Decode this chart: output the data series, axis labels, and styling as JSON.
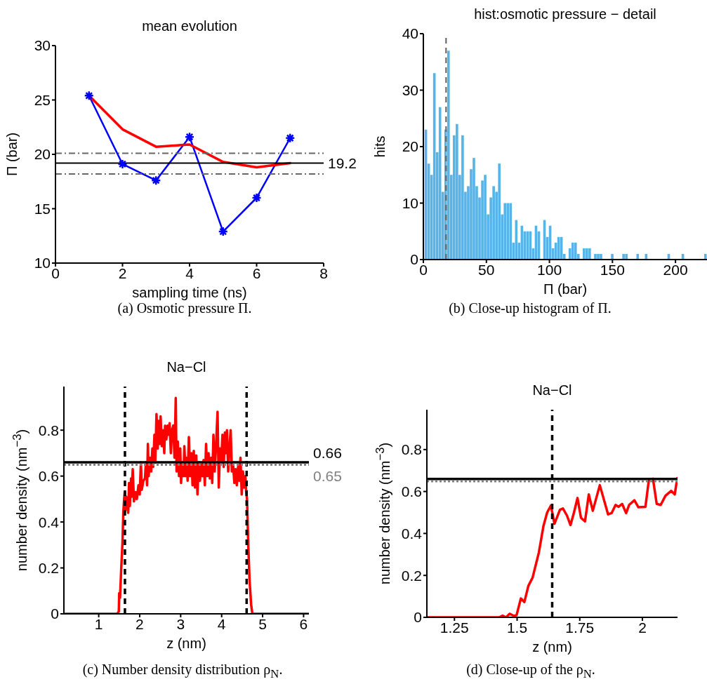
{
  "chart_data": [
    {
      "type": "line",
      "title": "mean evolution",
      "xlabel": "sampling time (ns)",
      "ylabel": "Π (bar)",
      "x": [
        1,
        2,
        3,
        4,
        5,
        6,
        7
      ],
      "series": [
        {
          "color": "#0000ff",
          "marker": "cross",
          "values": [
            25.4,
            19.1,
            17.6,
            21.6,
            12.9,
            16.0,
            21.5
          ]
        },
        {
          "color": "#ff0000",
          "marker": "none",
          "values": [
            25.4,
            22.3,
            20.7,
            20.9,
            19.3,
            18.8,
            19.2
          ]
        }
      ],
      "xlim": [
        0,
        8
      ],
      "xticks": [
        0,
        2,
        4,
        6,
        8
      ],
      "ylim": [
        10,
        30
      ],
      "yticks": [
        10,
        15,
        20,
        25,
        30
      ],
      "ref_lines": [
        {
          "axis": "y",
          "value": 19.2,
          "label": "19.2",
          "color": "#000000",
          "line_style": "solid"
        },
        {
          "axis": "y",
          "value": 20.1,
          "color": "#666666",
          "line_style": "dashdot"
        },
        {
          "axis": "y",
          "value": 18.2,
          "color": "#666666",
          "line_style": "dashdot"
        }
      ],
      "annotations": [
        "(a) Osmotic pressure Π."
      ]
    },
    {
      "type": "histogram",
      "title": "hist:osmotic pressure − detail",
      "xlabel": "Π (bar)",
      "ylabel": "hits",
      "color": "#56b4e9",
      "bins": [
        1,
        3.24,
        5.48,
        7.72,
        9.96,
        12.2,
        14.44,
        16.68,
        18.92,
        21.16,
        23.4,
        25.64,
        27.88,
        30.12,
        32.36,
        34.6,
        36.84,
        39.08,
        41.32,
        43.56,
        45.8,
        48.04,
        50.28,
        52.52,
        54.76,
        57,
        59.24,
        61.48,
        63.72,
        65.96,
        68.2,
        70.44,
        72.68,
        74.92,
        77.16,
        79.4,
        81.64,
        83.88,
        86.12,
        88.36,
        90.6,
        92.84,
        95.08,
        97.32,
        99.56,
        101.8,
        104.04,
        106.28,
        108.52,
        110.76,
        113,
        115.24,
        117.48,
        119.72,
        121.96,
        124.2,
        126.44,
        128.68,
        130.92,
        133.16,
        135.4,
        137.64,
        139.88,
        142.12,
        144.36,
        146.6,
        148.84,
        151.08,
        153.32,
        155.56,
        157.8,
        160.04,
        162.28,
        164.52,
        166.76,
        169,
        171.24,
        173.48,
        175.72,
        177.96,
        180.2,
        182.44,
        184.68,
        186.92,
        189.16,
        191.4,
        193.64,
        195.88,
        198.12,
        200.36,
        202.6,
        204.84,
        207.08,
        209.32,
        211.56,
        213.8,
        216.04,
        218.28,
        220.52,
        222.76,
        225
      ],
      "values": [
        23,
        17,
        15,
        33,
        19,
        27,
        12,
        23,
        37,
        15,
        22,
        24,
        15,
        22,
        12,
        13,
        16,
        18,
        13,
        11,
        14,
        15,
        8,
        11,
        13,
        12,
        17,
        8,
        10,
        10,
        10,
        3,
        7,
        3,
        6,
        5,
        5,
        5,
        2,
        6,
        5,
        0,
        7,
        4,
        6,
        2,
        3,
        4,
        4,
        1,
        0,
        2,
        3,
        3,
        1,
        0,
        2,
        2,
        2,
        0,
        1,
        1,
        1,
        0,
        0,
        0,
        1,
        0,
        0,
        0,
        1,
        1,
        0,
        0,
        0,
        1,
        0,
        0,
        1,
        0,
        0,
        0,
        0,
        0,
        0,
        0,
        1,
        0,
        0,
        0,
        0,
        1,
        0,
        0,
        0,
        0,
        0,
        0,
        0,
        1
      ],
      "xlim": [
        0,
        225
      ],
      "xticks": [
        0,
        50,
        100,
        150,
        200
      ],
      "ylim": [
        0,
        40
      ],
      "yticks": [
        0,
        10,
        20,
        30,
        40
      ],
      "ref_lines": [
        {
          "axis": "x",
          "value": 18,
          "color": "#5f5f5f",
          "line_style": "dashed"
        }
      ],
      "annotations": [
        "(b) Close-up histogram of Π."
      ]
    },
    {
      "type": "line",
      "title": "Na−Cl",
      "xlabel": "z (nm)",
      "ylabel": "number density (nm$^{−3}$)",
      "series": [
        {
          "color": "#ff0000",
          "x": [
            0.15,
            1.45,
            1.49,
            1.5,
            1.52,
            1.55,
            1.58,
            1.6,
            1.62,
            1.635,
            1.65,
            1.67,
            1.7,
            1.72,
            1.74,
            1.76,
            1.79,
            1.8,
            1.83,
            1.86,
            1.9,
            1.93,
            1.97,
            2.0,
            2.03,
            2.05,
            2.09,
            2.13,
            2.15,
            2.18,
            2.2,
            2.22,
            2.25,
            2.28,
            2.31,
            2.33,
            2.36,
            2.38,
            2.41,
            2.44,
            2.46,
            2.49,
            2.51,
            2.54,
            2.57,
            2.6,
            2.62,
            2.65,
            2.68,
            2.7,
            2.73,
            2.76,
            2.79,
            2.82,
            2.85,
            2.88,
            2.9,
            2.93,
            2.96,
            2.99,
            3.01,
            3.04,
            3.07,
            3.09,
            3.12,
            3.15,
            3.17,
            3.2,
            3.23,
            3.26,
            3.29,
            3.32,
            3.35,
            3.38,
            3.41,
            3.44,
            3.47,
            3.5,
            3.53,
            3.56,
            3.59,
            3.62,
            3.65,
            3.68,
            3.71,
            3.74,
            3.77,
            3.8,
            3.83,
            3.86,
            3.9,
            3.93,
            3.96,
            3.99,
            4.02,
            4.05,
            4.08,
            4.1,
            4.13,
            4.16,
            4.19,
            4.22,
            4.25,
            4.28,
            4.31,
            4.34,
            4.37,
            4.4,
            4.43,
            4.46,
            4.49,
            4.52,
            4.55,
            4.58,
            4.6,
            4.62,
            4.65,
            4.68,
            4.72,
            4.75,
            6.13
          ],
          "values": [
            0,
            0,
            0.01,
            0.09,
            0.07,
            0.2,
            0.31,
            0.44,
            0.5,
            0.53,
            0.45,
            0.51,
            0.48,
            0.44,
            0.57,
            0.47,
            0.59,
            0.51,
            0.63,
            0.49,
            0.53,
            0.5,
            0.56,
            0.52,
            0.66,
            0.54,
            0.58,
            0.59,
            0.66,
            0.56,
            0.74,
            0.6,
            0.68,
            0.62,
            0.72,
            0.64,
            0.78,
            0.66,
            0.87,
            0.72,
            0.84,
            0.74,
            0.86,
            0.73,
            0.8,
            0.7,
            0.82,
            0.76,
            0.82,
            0.78,
            0.83,
            0.7,
            0.8,
            0.82,
            0.68,
            0.94,
            0.62,
            0.75,
            0.6,
            0.72,
            0.57,
            0.66,
            0.6,
            0.73,
            0.6,
            0.68,
            0.58,
            0.77,
            0.6,
            0.7,
            0.56,
            0.71,
            0.55,
            0.69,
            0.52,
            0.66,
            0.58,
            0.65,
            0.6,
            0.67,
            0.56,
            0.74,
            0.6,
            0.7,
            0.59,
            0.68,
            0.57,
            0.78,
            0.62,
            0.72,
            0.88,
            0.55,
            0.72,
            0.66,
            0.78,
            0.64,
            0.79,
            0.7,
            0.8,
            0.62,
            0.72,
            0.8,
            0.62,
            0.65,
            0.57,
            0.63,
            0.56,
            0.64,
            0.58,
            0.68,
            0.52,
            0.62,
            0.55,
            0.6,
            0.53,
            0.5,
            0.3,
            0.15,
            0.04,
            0,
            0
          ]
        }
      ],
      "xlim": [
        0.15,
        6.13
      ],
      "xticks": [
        1,
        2,
        3,
        4,
        5,
        6
      ],
      "ylim": [
        0,
        0.99
      ],
      "yticks": [
        0,
        0.2,
        0.4,
        0.6,
        0.8
      ],
      "ref_lines": [
        {
          "axis": "x",
          "value": 1.64,
          "color": "#000000",
          "line_style": "dashed"
        },
        {
          "axis": "x",
          "value": 4.61,
          "color": "#000000",
          "line_style": "dashed"
        },
        {
          "axis": "y",
          "value": 0.66,
          "label": "0.66",
          "color": "#000000",
          "line_style": "solid"
        },
        {
          "axis": "y",
          "value": 0.65,
          "label": "0.65",
          "color": "#808080",
          "line_style": "dotted"
        }
      ],
      "annotations": [
        "(c) Number density distribution ρ$_{N}$."
      ]
    },
    {
      "type": "line",
      "title": "Na−Cl",
      "xlabel": "z (nm)",
      "ylabel": "number density (nm$^{−3}$)",
      "series": [
        {
          "color": "#ff0000",
          "x": [
            1.14,
            1.428,
            1.442,
            1.456,
            1.47,
            1.489,
            1.498,
            1.515,
            1.529,
            1.545,
            1.562,
            1.587,
            1.605,
            1.62,
            1.635,
            1.649,
            1.671,
            1.683,
            1.699,
            1.713,
            1.727,
            1.741,
            1.755,
            1.771,
            1.786,
            1.802,
            1.83,
            1.863,
            1.877,
            1.893,
            1.905,
            1.919,
            1.935,
            1.947,
            1.968,
            1.984,
            2.012,
            2.026,
            2.042,
            2.057,
            2.073,
            2.092,
            2.115,
            2.129,
            2.139
          ],
          "values": [
            0,
            0,
            0.008,
            0,
            0.017,
            0.006,
            0.011,
            0.09,
            0.073,
            0.15,
            0.19,
            0.31,
            0.435,
            0.5,
            0.533,
            0.446,
            0.513,
            0.519,
            0.485,
            0.44,
            0.5,
            0.569,
            0.474,
            0.458,
            0.586,
            0.508,
            0.63,
            0.491,
            0.497,
            0.536,
            0.527,
            0.541,
            0.497,
            0.536,
            0.558,
            0.525,
            0.527,
            0.658,
            0.661,
            0.541,
            0.536,
            0.58,
            0.603,
            0.586,
            0.664
          ]
        }
      ],
      "xlim": [
        1.14,
        2.14
      ],
      "xticks": [
        1.25,
        1.5,
        1.75,
        2
      ],
      "ylim": [
        0,
        0.99
      ],
      "yticks": [
        0,
        0.2,
        0.4,
        0.6,
        0.8
      ],
      "ref_lines": [
        {
          "axis": "x",
          "value": 1.64,
          "color": "#000000",
          "line_style": "dashed"
        },
        {
          "axis": "y",
          "value": 0.66,
          "color": "#000000",
          "line_style": "solid"
        },
        {
          "axis": "y",
          "value": 0.65,
          "color": "#808080",
          "line_style": "dotted"
        }
      ],
      "annotations": [
        "(d) Close-up of the ρ$_{N}$."
      ]
    }
  ]
}
